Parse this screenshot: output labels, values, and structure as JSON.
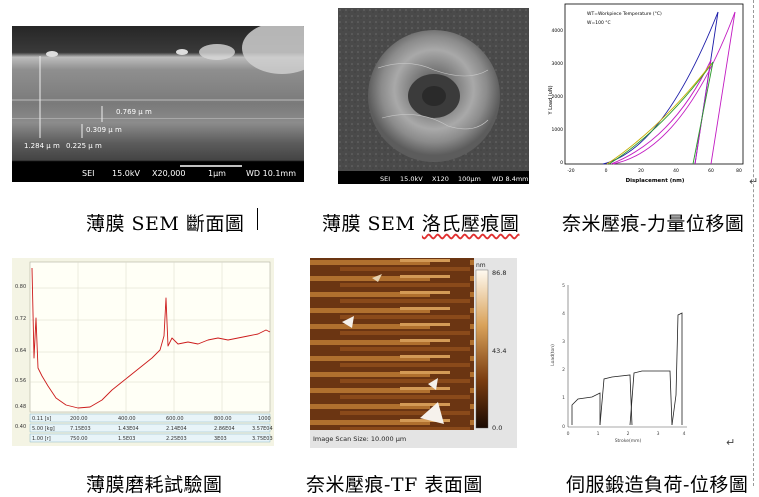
{
  "captions": [
    "薄膜 SEM 斷面圖",
    "薄膜 SEM 洛氏壓痕圖",
    "奈米壓痕-力量位移圖",
    "薄膜磨耗試驗圖",
    "奈米壓痕-TF 表面圖",
    "伺服鍛造負荷-位移圖"
  ],
  "sem_cross_section": {
    "measurements": [
      "0.769 μ m",
      "0.309 μ m",
      "1.284 μ m",
      "0.225 μ m"
    ],
    "bar": {
      "detector": "SEI",
      "voltage": "15.0kV",
      "mag": "X20,000",
      "scale": "1μm",
      "wd": "WD 10.1mm"
    }
  },
  "sem_indent": {
    "bar": {
      "detector": "SEI",
      "voltage": "15.0kV",
      "mag": "X120",
      "scale": "100μm",
      "wd": "WD 8.4mm"
    }
  },
  "nanoindent_chart": {
    "legend": [
      "WT=Workpiece Temperature (°C)",
      "W=100 °C"
    ],
    "xlabel": "Displacement (nm)",
    "ylabel": "Y Load (uN)",
    "xticks": [
      "-20",
      "0",
      "20",
      "40",
      "60",
      "80"
    ],
    "yticks": [
      "0",
      "1000",
      "2000",
      "3000",
      "4000"
    ]
  },
  "wear_chart": {
    "yticks": [
      "0.80",
      "0.72",
      "0.64",
      "0.56",
      "0.48",
      "0.40"
    ],
    "xticks": [
      "0.00",
      "200.00",
      "400.00",
      "600.00",
      "800.00",
      "1000"
    ],
    "row_labels": [
      "0.11 [s]",
      "5.00 [kg]",
      "1.00 [r]"
    ],
    "row2": [
      "7.15E03",
      "1.43E04",
      "2.14E04",
      "2.86E04",
      "3.57E04"
    ],
    "row3": [
      "750.00",
      "1.5E03",
      "2.25E03",
      "3E03",
      "3.75E03"
    ]
  },
  "afm": {
    "unit": "nm",
    "scale_max": "86.8",
    "scale_mid": "43.4",
    "scale_min": "0.0",
    "caption": "Image Scan Size: 10.000 μm"
  },
  "forging_chart": {
    "yticks": [
      "5",
      "4",
      "3",
      "2",
      "1",
      "0"
    ],
    "xticks": [
      "0",
      "1",
      "2",
      "3",
      "4"
    ],
    "xlabel": "Stroke(mm)",
    "ylabel": "Load(ton)"
  },
  "paragraph_mark": "↵"
}
